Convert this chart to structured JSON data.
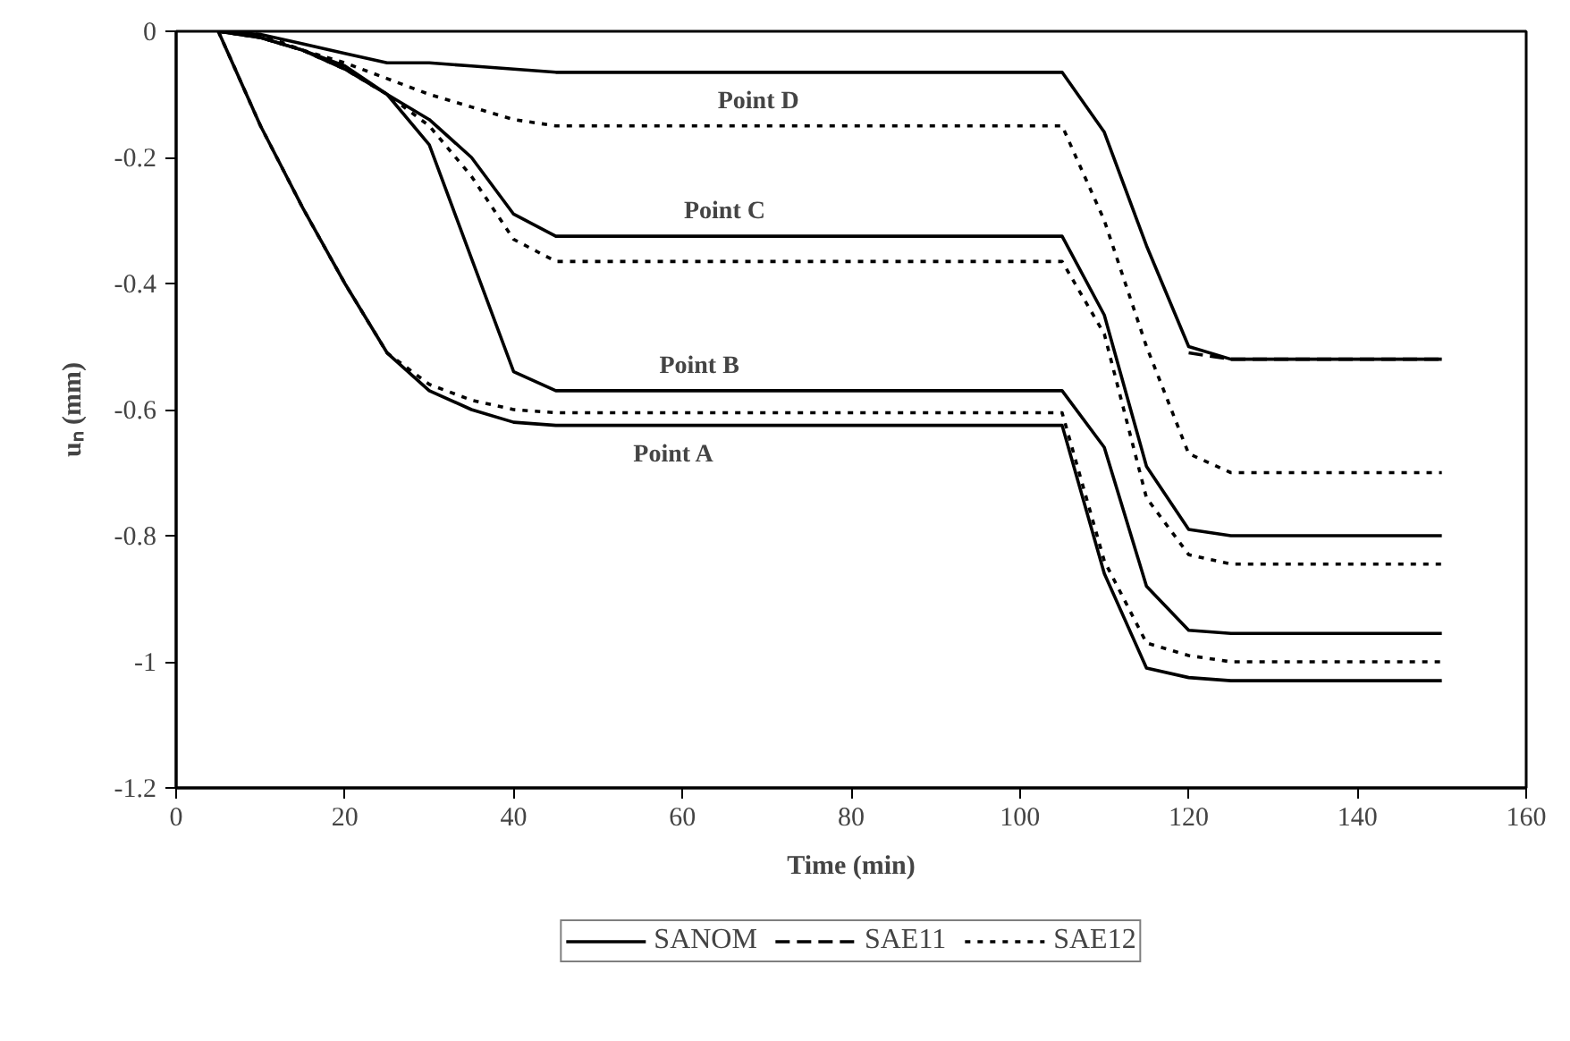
{
  "chart_data": {
    "type": "line",
    "xlabel": "Time (min)",
    "ylabel": "uₙ (mm)",
    "xlim": [
      0,
      160
    ],
    "xticks": [
      0,
      20,
      40,
      60,
      80,
      100,
      120,
      140,
      160
    ],
    "ylim": [
      -1.2,
      0
    ],
    "yticks": [
      0,
      -0.2,
      -0.4,
      -0.6,
      -0.8,
      -1,
      -1.2
    ],
    "grid": false,
    "legend": "bottom",
    "marker": "none",
    "series": [
      {
        "name": "SANOM",
        "color": "#000000",
        "line_style": "solid",
        "x": [
          5,
          10,
          15,
          20,
          25,
          30,
          35,
          40,
          45,
          105,
          110,
          115,
          120,
          125,
          150
        ],
        "values": [
          0,
          -0.15,
          -0.28,
          -0.4,
          -0.51,
          -0.57,
          -0.6,
          -0.62,
          -0.625,
          -0.625,
          -0.86,
          -1.01,
          -1.025,
          -1.03,
          -1.03
        ]
      },
      {
        "color": "#000000",
        "line_style": "solid",
        "x": [
          5,
          10,
          15,
          20,
          25,
          30,
          35,
          40,
          45,
          105,
          110,
          115,
          120,
          125,
          150
        ],
        "values": [
          0,
          -0.01,
          -0.03,
          -0.055,
          -0.1,
          -0.18,
          -0.36,
          -0.54,
          -0.57,
          -0.57,
          -0.66,
          -0.88,
          -0.95,
          -0.955,
          -0.955
        ]
      },
      {
        "color": "#000000",
        "line_style": "solid",
        "x": [
          5,
          10,
          15,
          20,
          25,
          30,
          35,
          40,
          45,
          105,
          110,
          115,
          120,
          125,
          150
        ],
        "values": [
          0,
          -0.01,
          -0.03,
          -0.06,
          -0.1,
          -0.14,
          -0.2,
          -0.29,
          -0.325,
          -0.325,
          -0.45,
          -0.69,
          -0.79,
          -0.8,
          -0.8
        ]
      },
      {
        "color": "#000000",
        "line_style": "solid",
        "x": [
          5,
          10,
          15,
          20,
          25,
          30,
          35,
          40,
          45,
          105,
          110,
          115,
          120,
          125,
          150
        ],
        "values": [
          0,
          -0.005,
          -0.02,
          -0.035,
          -0.05,
          -0.05,
          -0.055,
          -0.06,
          -0.065,
          -0.065,
          -0.16,
          -0.34,
          -0.5,
          -0.52,
          -0.52
        ]
      },
      {
        "name": "SAE11",
        "color": "#000000",
        "line_style": "dashed",
        "x": [
          120,
          125,
          150
        ],
        "values": [
          -0.51,
          -0.52,
          -0.52
        ]
      },
      {
        "name": "SAE12",
        "color": "#000000",
        "line_style": "dotted",
        "x": [
          5,
          10,
          15,
          20,
          25,
          30,
          35,
          40,
          45,
          105,
          110,
          115,
          120,
          125,
          150
        ],
        "values": [
          0,
          -0.15,
          -0.28,
          -0.4,
          -0.51,
          -0.56,
          -0.585,
          -0.6,
          -0.605,
          -0.605,
          -0.84,
          -0.97,
          -0.99,
          -1,
          -1
        ]
      },
      {
        "color": "#000000",
        "line_style": "dotted",
        "x": [
          5,
          10,
          15,
          20,
          25,
          30,
          35,
          40,
          45,
          105,
          110,
          115,
          120,
          125,
          150
        ],
        "values": [
          0,
          -0.01,
          -0.03,
          -0.06,
          -0.1,
          -0.15,
          -0.23,
          -0.33,
          -0.365,
          -0.365,
          -0.48,
          -0.74,
          -0.83,
          -0.845,
          -0.845
        ]
      },
      {
        "color": "#000000",
        "line_style": "dotted",
        "x": [
          5,
          10,
          15,
          20,
          25,
          30,
          35,
          40,
          45,
          105,
          110,
          115,
          120,
          125,
          150
        ],
        "values": [
          0,
          -0.005,
          -0.03,
          -0.05,
          -0.075,
          -0.1,
          -0.12,
          -0.14,
          -0.15,
          -0.15,
          -0.3,
          -0.5,
          -0.67,
          -0.7,
          -0.7
        ]
      }
    ],
    "annotations": [
      {
        "text": "Point A",
        "x": 59,
        "y": -0.625
      },
      {
        "text": "Point B",
        "x": 62,
        "y": -0.57
      },
      {
        "text": "Point C",
        "x": 65,
        "y": -0.325
      },
      {
        "text": "Point D",
        "x": 69,
        "y": -0.065
      }
    ]
  }
}
